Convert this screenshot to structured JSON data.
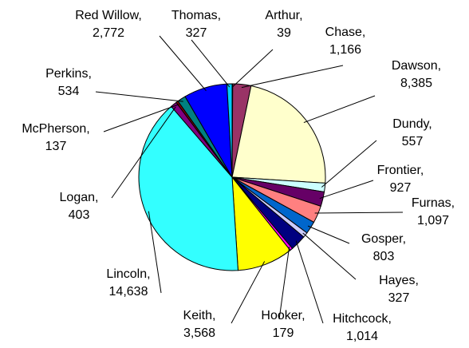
{
  "chart_data": {
    "type": "pie",
    "title": "",
    "start_angle_deg": 0,
    "direction": "clockwise",
    "slice_border_color": "#000000",
    "slices": [
      {
        "label": "Arthur,",
        "value_text": "39",
        "value": 39,
        "color": "#99CCFF"
      },
      {
        "label": "Chase,",
        "value_text": "1,166",
        "value": 1166,
        "color": "#993366"
      },
      {
        "label": "Dawson,",
        "value_text": "8,385",
        "value": 8385,
        "color": "#FFFFCC"
      },
      {
        "label": "Dundy,",
        "value_text": "557",
        "value": 557,
        "color": "#CCFFFF"
      },
      {
        "label": "Frontier,",
        "value_text": "927",
        "value": 927,
        "color": "#660066"
      },
      {
        "label": "Furnas,",
        "value_text": "1,097",
        "value": 1097,
        "color": "#FF8080"
      },
      {
        "label": "Gosper,",
        "value_text": "803",
        "value": 803,
        "color": "#0066CC"
      },
      {
        "label": "Hayes,",
        "value_text": "327",
        "value": 327,
        "color": "#CCCCFF"
      },
      {
        "label": "Hitchcock,",
        "value_text": "1,014",
        "value": 1014,
        "color": "#000080"
      },
      {
        "label": "Hooker,",
        "value_text": "179",
        "value": 179,
        "color": "#FF00FF"
      },
      {
        "label": "Keith,",
        "value_text": "3,568",
        "value": 3568,
        "color": "#FFFF00"
      },
      {
        "label": "Lincoln,",
        "value_text": "14,638",
        "value": 14638,
        "color": "#33FFFF"
      },
      {
        "label": "Logan,",
        "value_text": "403",
        "value": 403,
        "color": "#800080"
      },
      {
        "label": "McPherson,",
        "value_text": "137",
        "value": 137,
        "color": "#800000"
      },
      {
        "label": "Perkins,",
        "value_text": "534",
        "value": 534,
        "color": "#008080"
      },
      {
        "label": "Red Willow,",
        "value_text": "2,772",
        "value": 2772,
        "color": "#0000FF"
      },
      {
        "label": "Thomas,",
        "value_text": "327",
        "value": 327,
        "color": "#00CCFF"
      }
    ]
  }
}
